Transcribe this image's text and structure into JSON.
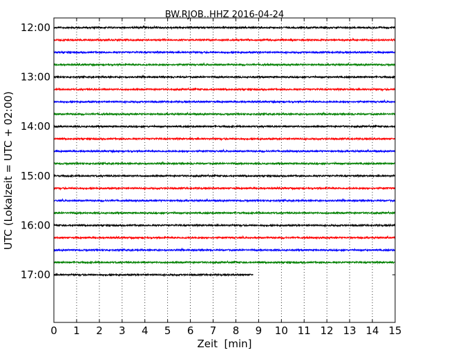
{
  "chart_data": {
    "type": "line",
    "title": "BW.RJOB..HHZ 2016-04-24",
    "xlabel": "Zeit  [min]",
    "ylabel": "UTC (Lokalzeit = UTC + 02:00)",
    "xlim": [
      0,
      15
    ],
    "x_ticks": [
      "0",
      "1",
      "2",
      "3",
      "4",
      "5",
      "6",
      "7",
      "8",
      "9",
      "10",
      "11",
      "12",
      "13",
      "14",
      "15"
    ],
    "y_ticks": [
      "12:00",
      "13:00",
      "14:00",
      "15:00",
      "16:00",
      "17:00"
    ],
    "grid": "vertical dotted at each minute",
    "colors": [
      "#000000",
      "#ff0000",
      "#0000ff",
      "#008000"
    ],
    "row_interval_minutes": 15,
    "start_time": "12:00",
    "rows": [
      {
        "time": "12:00",
        "duration_min": 15
      },
      {
        "time": "12:15",
        "duration_min": 15
      },
      {
        "time": "12:30",
        "duration_min": 15
      },
      {
        "time": "12:45",
        "duration_min": 15
      },
      {
        "time": "13:00",
        "duration_min": 15
      },
      {
        "time": "13:15",
        "duration_min": 15
      },
      {
        "time": "13:30",
        "duration_min": 15
      },
      {
        "time": "13:45",
        "duration_min": 15
      },
      {
        "time": "14:00",
        "duration_min": 15
      },
      {
        "time": "14:15",
        "duration_min": 15
      },
      {
        "time": "14:30",
        "duration_min": 15
      },
      {
        "time": "14:45",
        "duration_min": 15
      },
      {
        "time": "15:00",
        "duration_min": 15
      },
      {
        "time": "15:15",
        "duration_min": 15
      },
      {
        "time": "15:30",
        "duration_min": 15
      },
      {
        "time": "15:45",
        "duration_min": 15
      },
      {
        "time": "16:00",
        "duration_min": 15
      },
      {
        "time": "16:15",
        "duration_min": 15
      },
      {
        "time": "16:30",
        "duration_min": 15
      },
      {
        "time": "16:45",
        "duration_min": 15
      },
      {
        "time": "17:00",
        "duration_min": 8.75
      }
    ]
  }
}
